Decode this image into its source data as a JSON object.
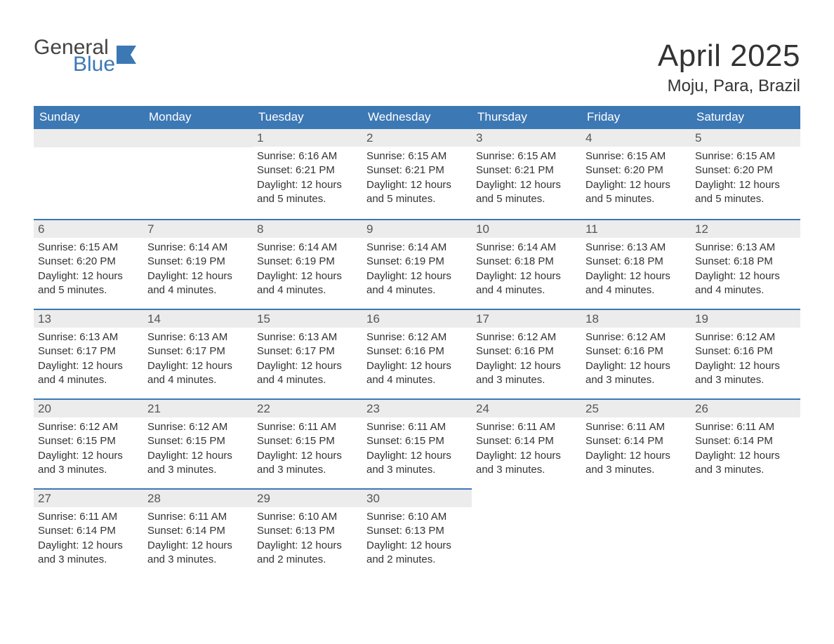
{
  "logo": {
    "line1": "General",
    "line2": "Blue"
  },
  "title": "April 2025",
  "subtitle": "Moju, Para, Brazil",
  "colors": {
    "header_bg": "#3c78b4",
    "header_text": "#ffffff",
    "daynum_bg": "#ececec",
    "row_border": "#3c78b4",
    "body_text": "#333333",
    "logo_blue": "#3c78b4",
    "page_bg": "#ffffff"
  },
  "weekdays": [
    "Sunday",
    "Monday",
    "Tuesday",
    "Wednesday",
    "Thursday",
    "Friday",
    "Saturday"
  ],
  "weeks": [
    [
      {
        "empty": true
      },
      {
        "empty": true
      },
      {
        "num": "1",
        "sunrise": "Sunrise: 6:16 AM",
        "sunset": "Sunset: 6:21 PM",
        "dl1": "Daylight: 12 hours",
        "dl2": "and 5 minutes."
      },
      {
        "num": "2",
        "sunrise": "Sunrise: 6:15 AM",
        "sunset": "Sunset: 6:21 PM",
        "dl1": "Daylight: 12 hours",
        "dl2": "and 5 minutes."
      },
      {
        "num": "3",
        "sunrise": "Sunrise: 6:15 AM",
        "sunset": "Sunset: 6:21 PM",
        "dl1": "Daylight: 12 hours",
        "dl2": "and 5 minutes."
      },
      {
        "num": "4",
        "sunrise": "Sunrise: 6:15 AM",
        "sunset": "Sunset: 6:20 PM",
        "dl1": "Daylight: 12 hours",
        "dl2": "and 5 minutes."
      },
      {
        "num": "5",
        "sunrise": "Sunrise: 6:15 AM",
        "sunset": "Sunset: 6:20 PM",
        "dl1": "Daylight: 12 hours",
        "dl2": "and 5 minutes."
      }
    ],
    [
      {
        "num": "6",
        "sunrise": "Sunrise: 6:15 AM",
        "sunset": "Sunset: 6:20 PM",
        "dl1": "Daylight: 12 hours",
        "dl2": "and 5 minutes."
      },
      {
        "num": "7",
        "sunrise": "Sunrise: 6:14 AM",
        "sunset": "Sunset: 6:19 PM",
        "dl1": "Daylight: 12 hours",
        "dl2": "and 4 minutes."
      },
      {
        "num": "8",
        "sunrise": "Sunrise: 6:14 AM",
        "sunset": "Sunset: 6:19 PM",
        "dl1": "Daylight: 12 hours",
        "dl2": "and 4 minutes."
      },
      {
        "num": "9",
        "sunrise": "Sunrise: 6:14 AM",
        "sunset": "Sunset: 6:19 PM",
        "dl1": "Daylight: 12 hours",
        "dl2": "and 4 minutes."
      },
      {
        "num": "10",
        "sunrise": "Sunrise: 6:14 AM",
        "sunset": "Sunset: 6:18 PM",
        "dl1": "Daylight: 12 hours",
        "dl2": "and 4 minutes."
      },
      {
        "num": "11",
        "sunrise": "Sunrise: 6:13 AM",
        "sunset": "Sunset: 6:18 PM",
        "dl1": "Daylight: 12 hours",
        "dl2": "and 4 minutes."
      },
      {
        "num": "12",
        "sunrise": "Sunrise: 6:13 AM",
        "sunset": "Sunset: 6:18 PM",
        "dl1": "Daylight: 12 hours",
        "dl2": "and 4 minutes."
      }
    ],
    [
      {
        "num": "13",
        "sunrise": "Sunrise: 6:13 AM",
        "sunset": "Sunset: 6:17 PM",
        "dl1": "Daylight: 12 hours",
        "dl2": "and 4 minutes."
      },
      {
        "num": "14",
        "sunrise": "Sunrise: 6:13 AM",
        "sunset": "Sunset: 6:17 PM",
        "dl1": "Daylight: 12 hours",
        "dl2": "and 4 minutes."
      },
      {
        "num": "15",
        "sunrise": "Sunrise: 6:13 AM",
        "sunset": "Sunset: 6:17 PM",
        "dl1": "Daylight: 12 hours",
        "dl2": "and 4 minutes."
      },
      {
        "num": "16",
        "sunrise": "Sunrise: 6:12 AM",
        "sunset": "Sunset: 6:16 PM",
        "dl1": "Daylight: 12 hours",
        "dl2": "and 4 minutes."
      },
      {
        "num": "17",
        "sunrise": "Sunrise: 6:12 AM",
        "sunset": "Sunset: 6:16 PM",
        "dl1": "Daylight: 12 hours",
        "dl2": "and 3 minutes."
      },
      {
        "num": "18",
        "sunrise": "Sunrise: 6:12 AM",
        "sunset": "Sunset: 6:16 PM",
        "dl1": "Daylight: 12 hours",
        "dl2": "and 3 minutes."
      },
      {
        "num": "19",
        "sunrise": "Sunrise: 6:12 AM",
        "sunset": "Sunset: 6:16 PM",
        "dl1": "Daylight: 12 hours",
        "dl2": "and 3 minutes."
      }
    ],
    [
      {
        "num": "20",
        "sunrise": "Sunrise: 6:12 AM",
        "sunset": "Sunset: 6:15 PM",
        "dl1": "Daylight: 12 hours",
        "dl2": "and 3 minutes."
      },
      {
        "num": "21",
        "sunrise": "Sunrise: 6:12 AM",
        "sunset": "Sunset: 6:15 PM",
        "dl1": "Daylight: 12 hours",
        "dl2": "and 3 minutes."
      },
      {
        "num": "22",
        "sunrise": "Sunrise: 6:11 AM",
        "sunset": "Sunset: 6:15 PM",
        "dl1": "Daylight: 12 hours",
        "dl2": "and 3 minutes."
      },
      {
        "num": "23",
        "sunrise": "Sunrise: 6:11 AM",
        "sunset": "Sunset: 6:15 PM",
        "dl1": "Daylight: 12 hours",
        "dl2": "and 3 minutes."
      },
      {
        "num": "24",
        "sunrise": "Sunrise: 6:11 AM",
        "sunset": "Sunset: 6:14 PM",
        "dl1": "Daylight: 12 hours",
        "dl2": "and 3 minutes."
      },
      {
        "num": "25",
        "sunrise": "Sunrise: 6:11 AM",
        "sunset": "Sunset: 6:14 PM",
        "dl1": "Daylight: 12 hours",
        "dl2": "and 3 minutes."
      },
      {
        "num": "26",
        "sunrise": "Sunrise: 6:11 AM",
        "sunset": "Sunset: 6:14 PM",
        "dl1": "Daylight: 12 hours",
        "dl2": "and 3 minutes."
      }
    ],
    [
      {
        "num": "27",
        "sunrise": "Sunrise: 6:11 AM",
        "sunset": "Sunset: 6:14 PM",
        "dl1": "Daylight: 12 hours",
        "dl2": "and 3 minutes."
      },
      {
        "num": "28",
        "sunrise": "Sunrise: 6:11 AM",
        "sunset": "Sunset: 6:14 PM",
        "dl1": "Daylight: 12 hours",
        "dl2": "and 3 minutes."
      },
      {
        "num": "29",
        "sunrise": "Sunrise: 6:10 AM",
        "sunset": "Sunset: 6:13 PM",
        "dl1": "Daylight: 12 hours",
        "dl2": "and 2 minutes."
      },
      {
        "num": "30",
        "sunrise": "Sunrise: 6:10 AM",
        "sunset": "Sunset: 6:13 PM",
        "dl1": "Daylight: 12 hours",
        "dl2": "and 2 minutes."
      },
      {
        "empty": true
      },
      {
        "empty": true
      },
      {
        "empty": true
      }
    ]
  ]
}
